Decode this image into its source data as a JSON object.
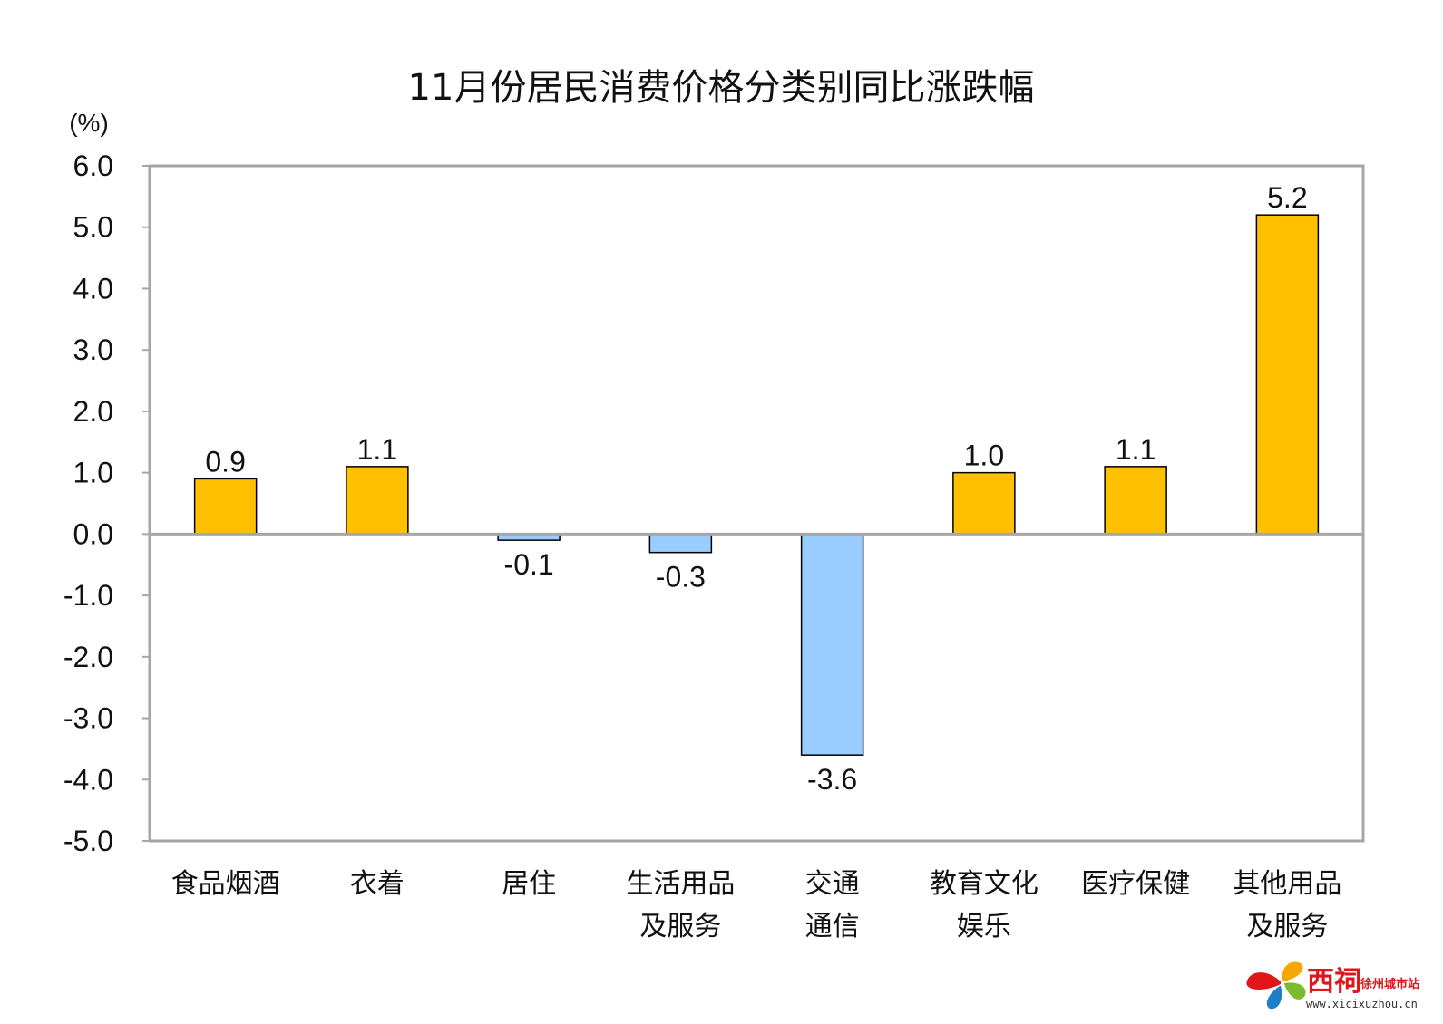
{
  "chart_data": {
    "type": "bar",
    "title": "11月份居民消费价格分类别同比涨跌幅",
    "ylabel": "(%)",
    "xlabel": "",
    "ylim": [
      -5.0,
      6.0
    ],
    "yticks": [
      "6.0",
      "5.0",
      "4.0",
      "3.0",
      "2.0",
      "1.0",
      "0.0",
      "-1.0",
      "-2.0",
      "-3.0",
      "-4.0",
      "-5.0"
    ],
    "ytick_values": [
      6,
      5,
      4,
      3,
      2,
      1,
      0,
      -1,
      -2,
      -3,
      -4,
      -5
    ],
    "grid": false,
    "categories": [
      [
        "食品烟酒"
      ],
      [
        "衣着"
      ],
      [
        "居住"
      ],
      [
        "生活用品",
        "及服务"
      ],
      [
        "交通",
        "通信"
      ],
      [
        "教育文化",
        "娱乐"
      ],
      [
        "医疗保健"
      ],
      [
        "其他用品",
        "及服务"
      ]
    ],
    "values": [
      0.9,
      1.1,
      -0.1,
      -0.3,
      -3.6,
      1.0,
      1.1,
      5.2
    ],
    "value_labels": [
      "0.9",
      "1.1",
      "-0.1",
      "-0.3",
      "-3.6",
      "1.0",
      "1.1",
      "5.2"
    ],
    "colors": {
      "positive": "#ffc000",
      "negative": "#99ccff",
      "bar_stroke": "#000000",
      "frame": "#a6a6a6"
    }
  },
  "watermark": {
    "brand": "西祠",
    "site": "徐州城市站",
    "url": "www.xicixuzhou.cn"
  }
}
